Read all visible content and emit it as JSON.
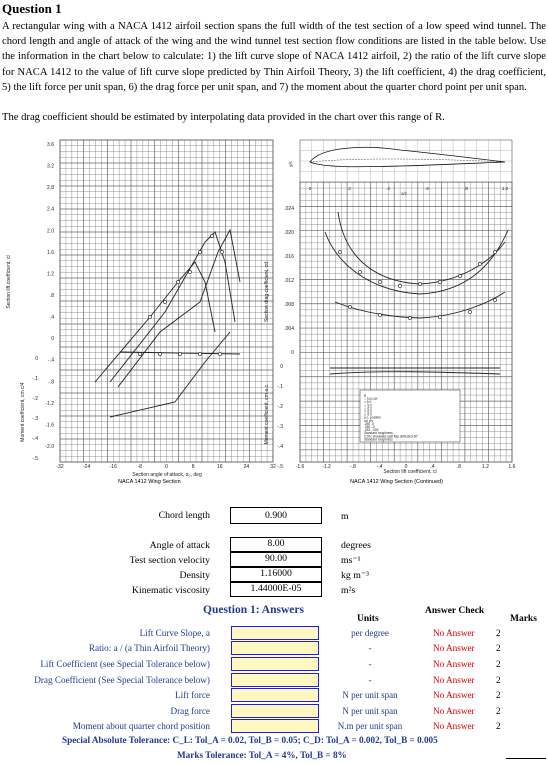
{
  "question": {
    "title": "Question 1",
    "body": "A rectangular wing with a NACA 1412 airfoil section spans the full width of the test section of a low speed wind tunnel. The chord length and angle of attack of the wing and the wind tunnel test section flow conditions are listed in the table below. Use the information in the chart below to calculate: 1) the lift curve slope of NACA 1412 airfoil, 2) the ratio of the lift curve slope for NACA 1412 to the value of lift curve slope predicted by Thin Airfoil Theory, 3) the lift coefficient, 4) the drag coefficient, 5) the lift force per unit span, 6) the drag force per unit span, and 7) the moment about the quarter chord point per unit span.",
    "note": "The drag coefficient should be estimated by interpolating data provided in the chart over this range of R."
  },
  "figure": {
    "left_caption": "NACA 1412 Wing Section",
    "right_caption": "NACA 1412 Wing Section (Continued)",
    "left_xlabel": "Section angle of attack, α₀, deg",
    "right_xlabel": "Section lift coefficient, cl",
    "left_ylabel": "Section lift coefficient, cl",
    "left_ylabel2": "Moment coefficient, cm c/4",
    "right_ylabel": "Section drag coefficient, cd",
    "right_ylabel2": "Moment coefficient, cm a.c.",
    "left_y_ticks": [
      "3.6",
      "3.2",
      "2.8",
      "2.4",
      "2.0",
      "1.6",
      "1.2",
      ".8",
      ".4",
      "0",
      "-.4",
      "-.8",
      "-1.2",
      "-1.6",
      "-2.0"
    ],
    "left_cm_ticks": [
      "0",
      "-.1",
      "-.2",
      "-.3",
      "-.4",
      "-.5"
    ],
    "left_x_ticks": [
      "-32",
      "-24",
      "-16",
      "-8",
      "0",
      "8",
      "16",
      "24",
      "32"
    ],
    "right_cd_ticks": [
      ".024",
      ".020",
      ".016",
      ".012",
      ".008",
      ".004",
      "0"
    ],
    "right_x_ticks": [
      "-1.6",
      "-1.2",
      "-.8",
      "-.4",
      "0",
      ".4",
      ".8",
      "1.2",
      "1.6"
    ],
    "right_cm_ticks": [
      "0",
      "-.1",
      "-.2",
      "-.3",
      "-.4",
      "-.5"
    ],
    "airfoil_ticks": [
      "0",
      ".2",
      ".4",
      ".6",
      ".8",
      "1.0"
    ],
    "airfoil_xlabel": "x/c",
    "airfoil_ylabel": "y/c",
    "legend": [
      "R",
      "○ 3.0×10⁶",
      "□ 6.0",
      "◇ 9.0",
      "△ 6.0",
      "▽ 6.0",
      "▷ 6.0",
      "a.c. position",
      "x/c   y/c",
      ".250  .0",
      ".250  -.0",
      ".252  -.026",
      "Standard roughness",
      "0.20c simulated split flap deflected 60°",
      "Standard roughness"
    ]
  },
  "inputs": [
    {
      "label": "Chord length",
      "value": "0.900",
      "unit": "m"
    },
    {
      "label": "Angle of attack",
      "value": "8.00",
      "unit": "degrees"
    },
    {
      "label": "Test section velocity",
      "value": "90.00",
      "unit": "ms⁻¹"
    },
    {
      "label": "Density",
      "value": "1.16000",
      "unit": "kg m⁻³"
    },
    {
      "label": "Kinematic viscosity",
      "value": "1.44000E-05",
      "unit": "m²s"
    }
  ],
  "answers": {
    "title": "Question 1: Answers",
    "units_header": "Units",
    "check_header": "Answer Check",
    "marks_header": "Marks",
    "rows": [
      {
        "label": "Lift Curve Slope, a",
        "unit": "per degree",
        "check": "No Answer",
        "marks": "2"
      },
      {
        "label": "Ratio: a / (a Thin Airfoil Theory)",
        "unit": "-",
        "check": "No Answer",
        "marks": "2"
      },
      {
        "label": "Lift Coefficient (see Special Tolerance below)",
        "unit": "-",
        "check": "No Answer",
        "marks": "2"
      },
      {
        "label": "Drag Coefficient (See Special Tolerance below)",
        "unit": "-",
        "check": "No Answer",
        "marks": "2"
      },
      {
        "label": "Lift force",
        "unit": "N per unit span",
        "check": "No Answer",
        "marks": "2"
      },
      {
        "label": "Drag force",
        "unit": "N per unit span",
        "check": "No Answer",
        "marks": "2"
      },
      {
        "label": "Moment about quarter chord position",
        "unit": "N.m per unit span",
        "check": "No Answer",
        "marks": "2"
      }
    ],
    "special_tolerance": "Special Absolute Tolerance: C_L: Tol_A = 0.02, Tol_B = 0.05; C_D: Tol_A = 0.002, Tol_B = 0.005",
    "marks_tolerance": "Marks Tolerance: Tol_A = 4%, Tol_B = 8%"
  },
  "colors": {
    "answer_label": "#1f3a93",
    "answer_check": "#d40000",
    "answer_box_fill": "#fff7c2",
    "answer_box_border": "#1a1aff"
  }
}
